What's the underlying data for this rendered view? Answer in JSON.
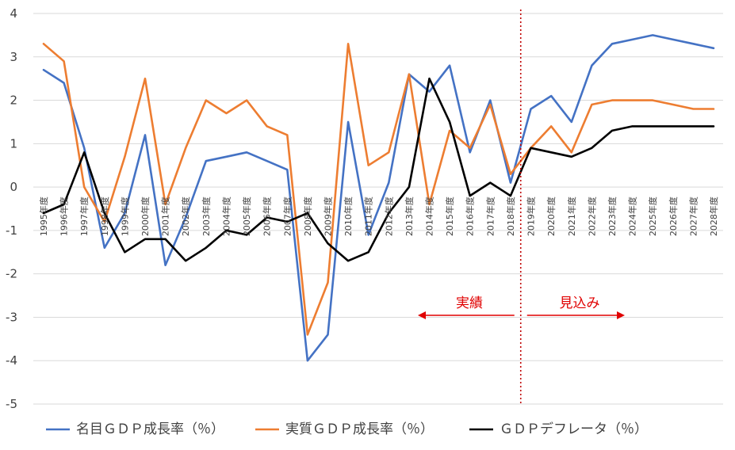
{
  "chart_data": {
    "type": "line",
    "categories": [
      "1995年度",
      "1996年度",
      "1997年度",
      "1998年度",
      "1999年度",
      "2000年度",
      "2001年度",
      "2002年度",
      "2003年度",
      "2004年度",
      "2005年度",
      "2006年度",
      "2007年度",
      "2008年度",
      "2009年度",
      "2010年度",
      "2011年度",
      "2012年度",
      "2013年度",
      "2014年度",
      "2015年度",
      "2016年度",
      "2017年度",
      "2018年度",
      "2019年度",
      "2020年度",
      "2021年度",
      "2022年度",
      "2023年度",
      "2024年度",
      "2025年度",
      "2026年度",
      "2027年度",
      "2028年度"
    ],
    "series": [
      {
        "name": "名目ＧＤＰ成長率（％）",
        "color": "#4472c4",
        "values": [
          2.7,
          2.4,
          0.9,
          -1.4,
          -0.6,
          1.2,
          -1.8,
          -0.7,
          0.6,
          0.7,
          0.8,
          0.6,
          0.4,
          -4.0,
          -3.4,
          1.5,
          -1.1,
          0.1,
          2.6,
          2.2,
          2.8,
          0.8,
          2.0,
          0.1,
          1.8,
          2.1,
          1.5,
          2.8,
          3.3,
          3.4,
          3.5,
          3.4,
          3.3,
          3.2
        ]
      },
      {
        "name": "実質ＧＤＰ成長率（％）",
        "color": "#ed7d31",
        "values": [
          3.3,
          2.9,
          0.0,
          -0.8,
          0.7,
          2.5,
          -0.4,
          0.9,
          2.0,
          1.7,
          2.0,
          1.4,
          1.2,
          -3.4,
          -2.2,
          3.3,
          0.5,
          0.8,
          2.6,
          -0.4,
          1.3,
          0.9,
          1.9,
          0.3,
          0.9,
          1.4,
          0.8,
          1.9,
          2.0,
          2.0,
          2.0,
          1.9,
          1.8,
          1.8
        ]
      },
      {
        "name": "ＧＤＰデフレータ（％）",
        "color": "#000000",
        "values": [
          -0.6,
          -0.4,
          0.8,
          -0.6,
          -1.5,
          -1.2,
          -1.2,
          -1.7,
          -1.4,
          -1.0,
          -1.1,
          -0.7,
          -0.8,
          -0.6,
          -1.3,
          -1.7,
          -1.5,
          -0.6,
          0.0,
          2.5,
          1.5,
          -0.2,
          0.1,
          -0.2,
          0.9,
          0.8,
          0.7,
          0.9,
          1.3,
          1.4,
          1.4,
          1.4,
          1.4,
          1.4
        ]
      }
    ],
    "ylim": [
      -5,
      4
    ],
    "yticks": [
      "4",
      "3",
      "2",
      "1",
      "0",
      "-1",
      "-2",
      "-3",
      "-4",
      "-5"
    ],
    "grid": true,
    "legend_position": "bottom",
    "divider_between": [
      "2018年度",
      "2019年度"
    ],
    "annotations": {
      "left": "実績",
      "right": "見込み"
    }
  }
}
